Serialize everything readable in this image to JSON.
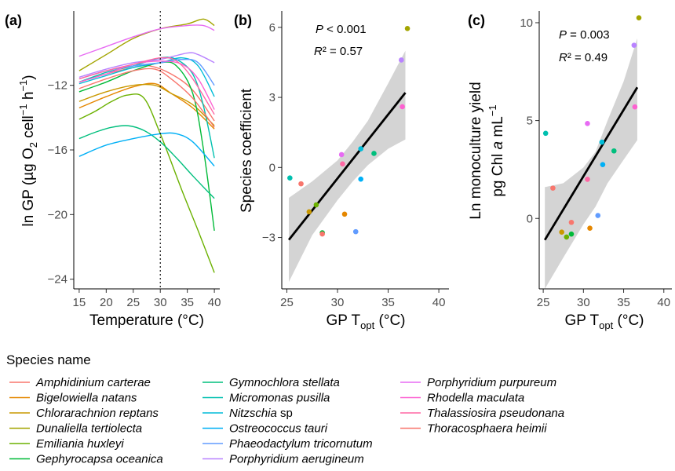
{
  "panels": {
    "a": {
      "label": "(a)",
      "xlabel": "Temperature (°C)",
      "ylabel_parts": [
        "ln GP (µg O",
        "2",
        " cell",
        "−1",
        " h",
        "−1",
        ")"
      ],
      "xlim": [
        14,
        41
      ],
      "ylim": [
        -24.6,
        -7.4
      ],
      "xticks": [
        "15",
        "20",
        "25",
        "30",
        "35",
        "40"
      ],
      "xtick_values": [
        15,
        20,
        25,
        30,
        35,
        40
      ],
      "yticks": [
        "−24",
        "−20",
        "−16",
        "−12"
      ],
      "ytick_values": [
        -24,
        -20,
        -16,
        -12
      ],
      "vline_x": 30
    },
    "b": {
      "label": "(b)",
      "ylabel": "Species coefficient",
      "xlabel_parts": [
        "GP T",
        "opt",
        " (°C)"
      ],
      "xlim": [
        24.5,
        41
      ],
      "ylim": [
        -5.2,
        6.7
      ],
      "xticks": [
        "25",
        "30",
        "35",
        "40"
      ],
      "xtick_values": [
        25,
        30,
        35,
        40
      ],
      "yticks": [
        "−3",
        "0",
        "3",
        "6"
      ],
      "ytick_values": [
        -3,
        0,
        3,
        6
      ],
      "annot_p_label": "P",
      "annot_p_rest": " < 0.001",
      "annot_r_label": "R",
      "annot_r_rest": "² = 0.57"
    },
    "c": {
      "label": "(c)",
      "ylabel_line1": "Ln monoculture yield",
      "ylabel_line2_parts": [
        "pg Chl ",
        "a",
        " mL",
        "−1"
      ],
      "xlabel_parts": [
        "GP T",
        "opt",
        " (°C)"
      ],
      "xlim": [
        24.5,
        41
      ],
      "ylim": [
        -3.6,
        10.6
      ],
      "xticks": [
        "25",
        "30",
        "35",
        "40"
      ],
      "xtick_values": [
        25,
        30,
        35,
        40
      ],
      "yticks": [
        "0",
        "5",
        "10"
      ],
      "ytick_values": [
        0,
        5,
        10
      ],
      "annot_p_label": "P",
      "annot_p_rest": " = 0.003",
      "annot_r_label": "R",
      "annot_r_rest": "² = 0.49"
    }
  },
  "legend": {
    "title": "Species name",
    "items": [
      {
        "genus": "Amphidinium carterae",
        "suffix": "",
        "color": "#F8766D"
      },
      {
        "genus": "Bigelowiella natans",
        "suffix": "",
        "color": "#E58700"
      },
      {
        "genus": "Chlorarachnion reptans",
        "suffix": "",
        "color": "#C99800"
      },
      {
        "genus": "Dunaliella tertiolecta",
        "suffix": "",
        "color": "#A3A500"
      },
      {
        "genus": "Emiliania huxleyi",
        "suffix": "",
        "color": "#6BB100"
      },
      {
        "genus": "Gephyrocapsa oceanica",
        "suffix": "",
        "color": "#00BA38"
      },
      {
        "genus": "Gymnochlora stellata",
        "suffix": "",
        "color": "#00BF7D"
      },
      {
        "genus": "Micromonas pusilla",
        "suffix": "",
        "color": "#00C0AF"
      },
      {
        "genus": "Nitzschia",
        "suffix": " sp",
        "color": "#00BCD8"
      },
      {
        "genus": "Ostreococcus tauri",
        "suffix": "",
        "color": "#00B0F6"
      },
      {
        "genus": "Phaeodactylum tricornutum",
        "suffix": "",
        "color": "#619CFF"
      },
      {
        "genus": "Porphyridium aerugineum",
        "suffix": "",
        "color": "#B983FF"
      },
      {
        "genus": "Porphyridium purpureum",
        "suffix": "",
        "color": "#E76BF3"
      },
      {
        "genus": "Rhodella maculata",
        "suffix": "",
        "color": "#FD61D1"
      },
      {
        "genus": "Thalassiosira pseudonana",
        "suffix": "",
        "color": "#FF67A4"
      },
      {
        "genus": "Thoracosphaera heimii",
        "suffix": "",
        "color": "#F8766D"
      }
    ]
  },
  "chart_data": [
    {
      "panel": "a",
      "type": "line",
      "xlabel": "Temperature (°C)",
      "ylabel": "ln GP (µg O2 cell−1 h−1)",
      "x": [
        15,
        40
      ],
      "xlim": [
        15,
        40
      ],
      "reference_line_x": 30,
      "series": [
        {
          "species": 0,
          "points": [
            [
              15,
              -11.8
            ],
            [
              20,
              -11.3
            ],
            [
              25,
              -10.9
            ],
            [
              28,
              -10.8
            ],
            [
              32,
              -11.3
            ],
            [
              36,
              -12.3
            ],
            [
              40,
              -14.2
            ]
          ]
        },
        {
          "species": 1,
          "points": [
            [
              15,
              -13.4
            ],
            [
              20,
              -12.7
            ],
            [
              25,
              -12.1
            ],
            [
              29,
              -11.9
            ],
            [
              32,
              -12.5
            ],
            [
              36,
              -13.4
            ],
            [
              40,
              -14.7
            ]
          ]
        },
        {
          "species": 2,
          "points": [
            [
              15,
              -13.0
            ],
            [
              20,
              -12.4
            ],
            [
              25,
              -12.0
            ],
            [
              29,
              -12.0
            ],
            [
              32,
              -12.5
            ],
            [
              36,
              -13.2
            ],
            [
              40,
              -14.5
            ]
          ]
        },
        {
          "species": 3,
          "points": [
            [
              15,
              -11.1
            ],
            [
              20,
              -10.1
            ],
            [
              25,
              -9.1
            ],
            [
              30,
              -8.5
            ],
            [
              35,
              -8.2
            ],
            [
              38,
              -7.9
            ],
            [
              40,
              -8.3
            ]
          ]
        },
        {
          "species": 4,
          "points": [
            [
              15,
              -14.1
            ],
            [
              18,
              -13.6
            ],
            [
              21,
              -13.0
            ],
            [
              24,
              -12.6
            ],
            [
              27,
              -12.8
            ],
            [
              30,
              -15.0
            ],
            [
              34,
              -18.5
            ],
            [
              37,
              -21.0
            ],
            [
              40,
              -23.6
            ]
          ]
        },
        {
          "species": 5,
          "points": [
            [
              15,
              -12.4
            ],
            [
              20,
              -11.8
            ],
            [
              25,
              -11.1
            ],
            [
              30,
              -10.6
            ],
            [
              33,
              -10.8
            ],
            [
              36,
              -12.5
            ],
            [
              38,
              -16.0
            ],
            [
              40,
              -21.0
            ]
          ]
        },
        {
          "species": 6,
          "points": [
            [
              15,
              -15.3
            ],
            [
              18,
              -14.9
            ],
            [
              21,
              -14.6
            ],
            [
              24,
              -14.5
            ],
            [
              27,
              -14.8
            ],
            [
              30,
              -15.5
            ],
            [
              33,
              -16.5
            ],
            [
              36,
              -17.6
            ],
            [
              40,
              -19.0
            ]
          ]
        },
        {
          "species": 7,
          "points": [
            [
              15,
              -11.8
            ],
            [
              20,
              -11.2
            ],
            [
              25,
              -10.8
            ],
            [
              30,
              -10.3
            ],
            [
              33,
              -10.4
            ],
            [
              36,
              -11.3
            ],
            [
              38,
              -13.3
            ],
            [
              40,
              -16.5
            ]
          ]
        },
        {
          "species": 8,
          "points": [
            [
              15,
              -11.9
            ],
            [
              20,
              -11.4
            ],
            [
              25,
              -10.9
            ],
            [
              30,
              -10.6
            ],
            [
              34,
              -10.3
            ],
            [
              37,
              -10.8
            ],
            [
              40,
              -12.7
            ]
          ]
        },
        {
          "species": 9,
          "points": [
            [
              15,
              -16.4
            ],
            [
              20,
              -15.7
            ],
            [
              25,
              -15.3
            ],
            [
              30,
              -15.0
            ],
            [
              33,
              -15.0
            ],
            [
              36,
              -15.5
            ],
            [
              40,
              -17.0
            ]
          ]
        },
        {
          "species": 10,
          "points": [
            [
              15,
              -11.6
            ],
            [
              20,
              -11.1
            ],
            [
              25,
              -10.8
            ],
            [
              30,
              -10.6
            ],
            [
              34,
              -10.4
            ],
            [
              37,
              -10.6
            ],
            [
              40,
              -12.0
            ]
          ]
        },
        {
          "species": 11,
          "points": [
            [
              15,
              -11.5
            ],
            [
              20,
              -11.0
            ],
            [
              25,
              -10.6
            ],
            [
              30,
              -10.4
            ],
            [
              35,
              -10.0
            ],
            [
              37,
              -10.1
            ],
            [
              40,
              -10.6
            ]
          ]
        },
        {
          "species": 12,
          "points": [
            [
              15,
              -10.2
            ],
            [
              20,
              -9.6
            ],
            [
              25,
              -9.0
            ],
            [
              30,
              -8.5
            ],
            [
              35,
              -8.3
            ],
            [
              38,
              -8.3
            ],
            [
              40,
              -8.6
            ]
          ]
        },
        {
          "species": 13,
          "points": [
            [
              15,
              -11.8
            ],
            [
              20,
              -11.3
            ],
            [
              25,
              -10.7
            ],
            [
              30,
              -10.5
            ],
            [
              34,
              -10.7
            ],
            [
              37,
              -11.6
            ],
            [
              40,
              -13.5
            ]
          ]
        },
        {
          "species": 14,
          "points": [
            [
              15,
              -11.6
            ],
            [
              20,
              -11.1
            ],
            [
              25,
              -10.7
            ],
            [
              30,
              -10.3
            ],
            [
              33,
              -10.5
            ],
            [
              36,
              -11.6
            ],
            [
              40,
              -13.8
            ]
          ]
        },
        {
          "species": 15,
          "points": [
            [
              15,
              -12.2
            ],
            [
              20,
              -11.6
            ],
            [
              25,
              -11.1
            ],
            [
              29,
              -11.0
            ],
            [
              32,
              -11.6
            ],
            [
              36,
              -12.8
            ],
            [
              40,
              -14.6
            ]
          ]
        }
      ]
    },
    {
      "panel": "b",
      "type": "scatter",
      "xlabel": "GP Topt (°C)",
      "ylabel": "Species coefficient",
      "xlim": [
        24.5,
        41
      ],
      "ylim": [
        -5.2,
        6.7
      ],
      "points": [
        {
          "species": 0,
          "x": 26.4,
          "y": -0.7
        },
        {
          "species": 1,
          "x": 30.7,
          "y": -2.0
        },
        {
          "species": 2,
          "x": 27.2,
          "y": -1.9
        },
        {
          "species": 3,
          "x": 36.9,
          "y": 5.95
        },
        {
          "species": 4,
          "x": 27.9,
          "y": -1.6
        },
        {
          "species": 5,
          "x": 28.5,
          "y": -2.8
        },
        {
          "species": 6,
          "x": 33.6,
          "y": 0.6
        },
        {
          "species": 7,
          "x": 25.3,
          "y": -0.45
        },
        {
          "species": 8,
          "x": 32.3,
          "y": 0.8
        },
        {
          "species": 9,
          "x": 32.3,
          "y": -0.5
        },
        {
          "species": 10,
          "x": 31.8,
          "y": -2.75
        },
        {
          "species": 11,
          "x": 36.3,
          "y": 4.6
        },
        {
          "species": 12,
          "x": 30.4,
          "y": 0.55
        },
        {
          "species": 13,
          "x": 36.4,
          "y": 2.6
        },
        {
          "species": 14,
          "x": 30.5,
          "y": 0.15
        },
        {
          "species": 15,
          "x": 28.5,
          "y": -2.85
        }
      ],
      "fit": {
        "x": [
          25.2,
          36.7
        ],
        "y": [
          -3.1,
          3.2
        ]
      },
      "ci_band": {
        "x": [
          25.2,
          27.5,
          30.0,
          31.5,
          33.0,
          35.0,
          36.7
        ],
        "lower": [
          -4.9,
          -2.9,
          -1.4,
          -0.6,
          0.1,
          0.8,
          1.2
        ],
        "upper": [
          -1.3,
          -0.6,
          0.3,
          1.1,
          2.0,
          3.6,
          5.0
        ]
      },
      "annotation": [
        "P < 0.001",
        "R² = 0.57"
      ]
    },
    {
      "panel": "c",
      "type": "scatter",
      "xlabel": "GP Topt (°C)",
      "ylabel": "Ln monoculture yield pg Chl a mL−1",
      "xlim": [
        24.5,
        41
      ],
      "ylim": [
        -3.6,
        10.6
      ],
      "points": [
        {
          "species": 0,
          "x": 26.2,
          "y": 1.55
        },
        {
          "species": 1,
          "x": 30.8,
          "y": -0.5
        },
        {
          "species": 2,
          "x": 27.3,
          "y": -0.7
        },
        {
          "species": 3,
          "x": 36.9,
          "y": 10.25
        },
        {
          "species": 4,
          "x": 27.9,
          "y": -0.95
        },
        {
          "species": 5,
          "x": 28.5,
          "y": -0.8
        },
        {
          "species": 6,
          "x": 33.8,
          "y": 3.45
        },
        {
          "species": 7,
          "x": 25.3,
          "y": 4.35
        },
        {
          "species": 8,
          "x": 32.3,
          "y": 3.9
        },
        {
          "species": 9,
          "x": 32.4,
          "y": 2.75
        },
        {
          "species": 10,
          "x": 31.8,
          "y": 0.15
        },
        {
          "species": 11,
          "x": 36.3,
          "y": 8.85
        },
        {
          "species": 12,
          "x": 30.5,
          "y": 4.85
        },
        {
          "species": 13,
          "x": 36.4,
          "y": 5.7
        },
        {
          "species": 14,
          "x": 30.5,
          "y": 2.0
        },
        {
          "species": 15,
          "x": 28.5,
          "y": -0.2
        }
      ],
      "fit": {
        "x": [
          25.2,
          36.7
        ],
        "y": [
          -1.1,
          6.7
        ]
      },
      "ci_band": {
        "x": [
          25.2,
          27.5,
          30.0,
          31.5,
          33.0,
          35.0,
          36.7
        ],
        "lower": [
          -3.6,
          -2.0,
          -0.3,
          0.6,
          1.8,
          3.0,
          4.0
        ],
        "upper": [
          1.6,
          1.8,
          2.6,
          3.4,
          5.0,
          7.0,
          9.2
        ]
      },
      "annotation": [
        "P = 0.003",
        "R² = 0.49"
      ]
    }
  ]
}
